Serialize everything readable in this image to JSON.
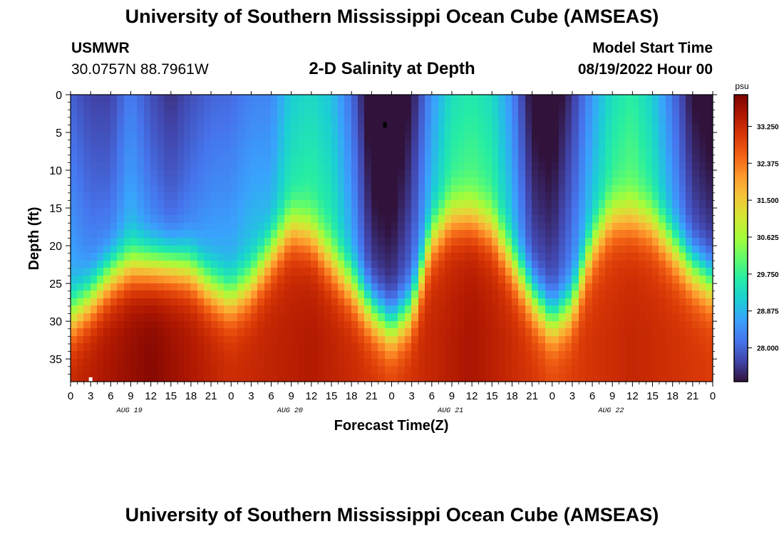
{
  "header": {
    "title_top": "University of Southern Mississippi Ocean Cube (AMSEAS)",
    "title_bottom": "University of Southern Mississippi Ocean Cube (AMSEAS)",
    "station": "USMWR",
    "coords": "30.0757N  88.7961W",
    "subtitle": "2-D Salinity at Depth",
    "model_start_label": "Model Start Time",
    "model_start_value": "08/19/2022 Hour 00"
  },
  "chart_data": {
    "type": "heatmap",
    "title": "2-D Salinity at Depth",
    "xlabel": "Forecast Time(Z)",
    "ylabel": "Depth (ft)",
    "x_range_hours": [
      0,
      96
    ],
    "y_range_ft": [
      0,
      38
    ],
    "x_ticks": [
      "0",
      "3",
      "6",
      "9",
      "12",
      "15",
      "18",
      "21",
      "0",
      "3",
      "6",
      "9",
      "12",
      "15",
      "18",
      "21",
      "0",
      "3",
      "6",
      "9",
      "12",
      "15",
      "18",
      "21",
      "0",
      "3",
      "6",
      "9",
      "12",
      "15",
      "18",
      "21",
      "0"
    ],
    "y_ticks": [
      0,
      5,
      10,
      15,
      20,
      25,
      30,
      35
    ],
    "y_tick_labels": [
      "0",
      "5",
      "10",
      "15",
      "20",
      "25",
      "30",
      "35"
    ],
    "day_labels": [
      {
        "label": "AUG 19",
        "hour": 12
      },
      {
        "label": "AUG 20",
        "hour": 36
      },
      {
        "label": "AUG 21",
        "hour": 60
      },
      {
        "label": "AUG 22",
        "hour": 84
      }
    ],
    "colorbar": {
      "unit": "psu",
      "min": 27.2,
      "max": 34.0,
      "labels": [
        "33.250",
        "32.375",
        "31.500",
        "30.625",
        "29.750",
        "28.875",
        "28.000"
      ],
      "label_values": [
        33.25,
        32.375,
        31.5,
        30.625,
        29.75,
        28.875,
        28.0
      ],
      "colors": [
        "#30123b",
        "#4145ab",
        "#4675ed",
        "#39a2fc",
        "#1bcfd4",
        "#24eca6",
        "#61fc6c",
        "#a4fc3b",
        "#d1e834",
        "#f3c63a",
        "#fe9b2d",
        "#f36315",
        "#d93806",
        "#b11901",
        "#7a0402"
      ]
    },
    "halocline": [
      {
        "hour": 0,
        "depth": 29.5
      },
      {
        "hour": 3,
        "depth": 27
      },
      {
        "hour": 6,
        "depth": 24
      },
      {
        "hour": 9,
        "depth": 22.5
      },
      {
        "hour": 12,
        "depth": 22.5
      },
      {
        "hour": 15,
        "depth": 22.5
      },
      {
        "hour": 18,
        "depth": 23
      },
      {
        "hour": 21,
        "depth": 25.5
      },
      {
        "hour": 24,
        "depth": 27
      },
      {
        "hour": 27,
        "depth": 25
      },
      {
        "hour": 30,
        "depth": 21
      },
      {
        "hour": 33,
        "depth": 17.5
      },
      {
        "hour": 36,
        "depth": 18.5
      },
      {
        "hour": 39,
        "depth": 22
      },
      {
        "hour": 42,
        "depth": 25
      },
      {
        "hour": 45,
        "depth": 28.5
      },
      {
        "hour": 48,
        "depth": 31
      },
      {
        "hour": 51,
        "depth": 28.5
      },
      {
        "hour": 54,
        "depth": 19
      },
      {
        "hour": 57,
        "depth": 16
      },
      {
        "hour": 60,
        "depth": 16
      },
      {
        "hour": 63,
        "depth": 17.5
      },
      {
        "hour": 66,
        "depth": 22
      },
      {
        "hour": 69,
        "depth": 26.5
      },
      {
        "hour": 72,
        "depth": 30
      },
      {
        "hour": 75,
        "depth": 28
      },
      {
        "hour": 78,
        "depth": 20
      },
      {
        "hour": 81,
        "depth": 16
      },
      {
        "hour": 84,
        "depth": 16
      },
      {
        "hour": 87,
        "depth": 17
      },
      {
        "hour": 90,
        "depth": 20
      },
      {
        "hour": 93,
        "depth": 23
      },
      {
        "hour": 96,
        "depth": 25
      }
    ],
    "surface_psu": [
      {
        "hour": 0,
        "psu": 28.6
      },
      {
        "hour": 3,
        "psu": 28.2
      },
      {
        "hour": 6,
        "psu": 28.1
      },
      {
        "hour": 9,
        "psu": 28.7
      },
      {
        "hour": 12,
        "psu": 28.2
      },
      {
        "hour": 15,
        "psu": 27.9
      },
      {
        "hour": 18,
        "psu": 28.2
      },
      {
        "hour": 21,
        "psu": 28.5
      },
      {
        "hour": 24,
        "psu": 28.6
      },
      {
        "hour": 27,
        "psu": 28.8
      },
      {
        "hour": 30,
        "psu": 28.7
      },
      {
        "hour": 33,
        "psu": 29.4
      },
      {
        "hour": 36,
        "psu": 29.6
      },
      {
        "hour": 39,
        "psu": 29.4
      },
      {
        "hour": 42,
        "psu": 28.6
      },
      {
        "hour": 45,
        "psu": 27.4
      },
      {
        "hour": 48,
        "psu": 27.3
      },
      {
        "hour": 51,
        "psu": 27.8
      },
      {
        "hour": 54,
        "psu": 28.8
      },
      {
        "hour": 57,
        "psu": 29.6
      },
      {
        "hour": 60,
        "psu": 29.8
      },
      {
        "hour": 63,
        "psu": 29.6
      },
      {
        "hour": 66,
        "psu": 28.8
      },
      {
        "hour": 69,
        "psu": 27.6
      },
      {
        "hour": 72,
        "psu": 27.5
      },
      {
        "hour": 75,
        "psu": 28.1
      },
      {
        "hour": 78,
        "psu": 28.9
      },
      {
        "hour": 81,
        "psu": 29.6
      },
      {
        "hour": 84,
        "psu": 29.9
      },
      {
        "hour": 87,
        "psu": 29.4
      },
      {
        "hour": 90,
        "psu": 28.5
      },
      {
        "hour": 93,
        "psu": 27.6
      },
      {
        "hour": 96,
        "psu": 27.4
      }
    ],
    "bottom_psu": [
      {
        "hour": 0,
        "psu": 33.3
      },
      {
        "hour": 12,
        "psu": 33.9
      },
      {
        "hour": 24,
        "psu": 33.2
      },
      {
        "hour": 36,
        "psu": 33.5
      },
      {
        "hour": 48,
        "psu": 33.0
      },
      {
        "hour": 60,
        "psu": 33.6
      },
      {
        "hour": 72,
        "psu": 32.9
      },
      {
        "hour": 84,
        "psu": 33.3
      },
      {
        "hour": 96,
        "psu": 33.0
      }
    ],
    "markers": [
      {
        "hour": 47,
        "depth": 4,
        "color": "#000000"
      },
      {
        "hour": 3,
        "depth": 37.8,
        "color": "#ffffff"
      }
    ]
  }
}
